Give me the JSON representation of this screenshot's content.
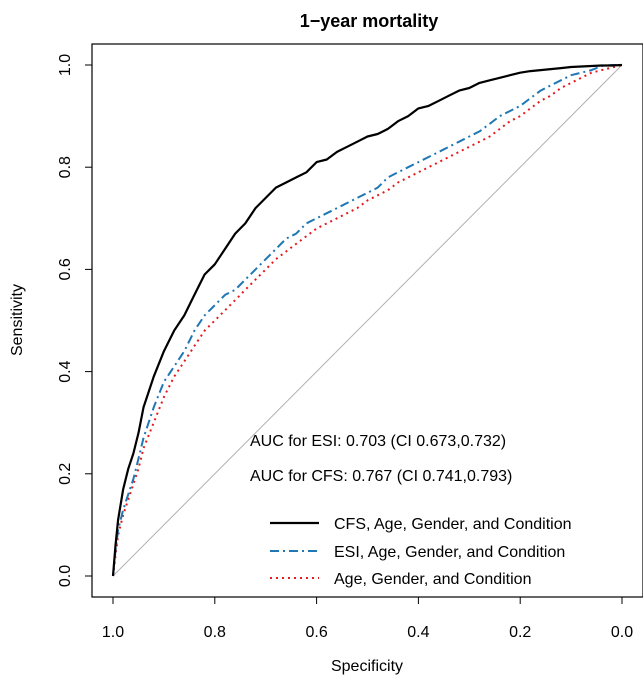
{
  "chart_data": {
    "type": "line",
    "title": "1−year mortality",
    "xlabel": "Specificity",
    "ylabel": "Sensitivity",
    "xlim": [
      1.0,
      0.0
    ],
    "ylim": [
      0.0,
      1.0
    ],
    "x_reversed": true,
    "x_ticks": [
      "1.0",
      "0.8",
      "0.6",
      "0.4",
      "0.2",
      "0.0"
    ],
    "y_ticks": [
      "0.0",
      "0.2",
      "0.4",
      "0.6",
      "0.8",
      "1.0"
    ],
    "grid": false,
    "annotations": [
      "AUC for ESI: 0.703 (CI 0.673,0.732)",
      "AUC for CFS: 0.767 (CI 0.741,0.793)"
    ],
    "legend_position": "bottom-right",
    "reference_line": {
      "x": [
        1.0,
        0.0
      ],
      "y": [
        0.0,
        1.0
      ],
      "color": "#b0b0b0"
    },
    "series": [
      {
        "name": "CFS, Age, Gender, and Condition",
        "color": "#000000",
        "style": "solid",
        "x": [
          1.0,
          0.995,
          0.99,
          0.98,
          0.97,
          0.96,
          0.95,
          0.94,
          0.92,
          0.9,
          0.88,
          0.86,
          0.84,
          0.82,
          0.8,
          0.78,
          0.76,
          0.74,
          0.72,
          0.7,
          0.68,
          0.66,
          0.64,
          0.62,
          0.6,
          0.58,
          0.56,
          0.54,
          0.52,
          0.5,
          0.48,
          0.46,
          0.44,
          0.42,
          0.4,
          0.38,
          0.36,
          0.34,
          0.32,
          0.3,
          0.28,
          0.26,
          0.24,
          0.22,
          0.2,
          0.18,
          0.16,
          0.14,
          0.12,
          0.1,
          0.08,
          0.06,
          0.04,
          0.02,
          0.0
        ],
        "y": [
          0.0,
          0.06,
          0.11,
          0.17,
          0.21,
          0.24,
          0.28,
          0.33,
          0.39,
          0.44,
          0.48,
          0.51,
          0.55,
          0.59,
          0.61,
          0.64,
          0.67,
          0.69,
          0.72,
          0.74,
          0.76,
          0.77,
          0.78,
          0.79,
          0.81,
          0.815,
          0.83,
          0.84,
          0.85,
          0.86,
          0.865,
          0.875,
          0.89,
          0.9,
          0.915,
          0.92,
          0.93,
          0.94,
          0.95,
          0.955,
          0.965,
          0.97,
          0.975,
          0.98,
          0.985,
          0.988,
          0.99,
          0.992,
          0.994,
          0.996,
          0.997,
          0.998,
          0.999,
          0.999,
          1.0
        ]
      },
      {
        "name": "ESI, Age, Gender, and Condition",
        "color": "#1f77b4",
        "style": "dashdot",
        "x": [
          1.0,
          0.995,
          0.99,
          0.98,
          0.97,
          0.96,
          0.95,
          0.94,
          0.92,
          0.9,
          0.88,
          0.86,
          0.84,
          0.82,
          0.8,
          0.78,
          0.76,
          0.74,
          0.72,
          0.7,
          0.68,
          0.66,
          0.64,
          0.62,
          0.6,
          0.58,
          0.56,
          0.54,
          0.52,
          0.5,
          0.48,
          0.46,
          0.44,
          0.42,
          0.4,
          0.38,
          0.36,
          0.34,
          0.32,
          0.3,
          0.28,
          0.26,
          0.24,
          0.22,
          0.2,
          0.18,
          0.16,
          0.14,
          0.12,
          0.1,
          0.08,
          0.06,
          0.04,
          0.02,
          0.0
        ],
        "y": [
          0.0,
          0.05,
          0.09,
          0.13,
          0.16,
          0.19,
          0.23,
          0.27,
          0.33,
          0.38,
          0.41,
          0.44,
          0.48,
          0.51,
          0.53,
          0.55,
          0.56,
          0.58,
          0.6,
          0.62,
          0.64,
          0.66,
          0.67,
          0.69,
          0.7,
          0.71,
          0.72,
          0.73,
          0.74,
          0.75,
          0.76,
          0.78,
          0.79,
          0.8,
          0.81,
          0.82,
          0.83,
          0.84,
          0.85,
          0.86,
          0.87,
          0.885,
          0.9,
          0.91,
          0.92,
          0.935,
          0.95,
          0.96,
          0.97,
          0.98,
          0.985,
          0.99,
          0.998,
          1.0,
          1.0
        ]
      },
      {
        "name": "Age, Gender, and Condition",
        "color": "#e41a1c",
        "style": "dotted",
        "x": [
          1.0,
          0.995,
          0.99,
          0.98,
          0.97,
          0.96,
          0.95,
          0.94,
          0.92,
          0.9,
          0.88,
          0.86,
          0.84,
          0.82,
          0.8,
          0.78,
          0.76,
          0.74,
          0.72,
          0.7,
          0.68,
          0.66,
          0.64,
          0.62,
          0.6,
          0.58,
          0.56,
          0.54,
          0.52,
          0.5,
          0.48,
          0.46,
          0.44,
          0.42,
          0.4,
          0.38,
          0.36,
          0.34,
          0.32,
          0.3,
          0.28,
          0.26,
          0.24,
          0.22,
          0.2,
          0.18,
          0.16,
          0.14,
          0.12,
          0.1,
          0.08,
          0.06,
          0.04,
          0.02,
          0.0
        ],
        "y": [
          0.0,
          0.04,
          0.08,
          0.12,
          0.15,
          0.18,
          0.21,
          0.25,
          0.3,
          0.35,
          0.39,
          0.42,
          0.45,
          0.48,
          0.5,
          0.52,
          0.54,
          0.56,
          0.58,
          0.6,
          0.62,
          0.635,
          0.65,
          0.665,
          0.68,
          0.69,
          0.7,
          0.71,
          0.72,
          0.735,
          0.745,
          0.755,
          0.77,
          0.78,
          0.79,
          0.8,
          0.81,
          0.82,
          0.83,
          0.84,
          0.85,
          0.86,
          0.875,
          0.89,
          0.9,
          0.915,
          0.93,
          0.94,
          0.955,
          0.965,
          0.975,
          0.985,
          0.99,
          0.995,
          1.0
        ]
      }
    ]
  }
}
